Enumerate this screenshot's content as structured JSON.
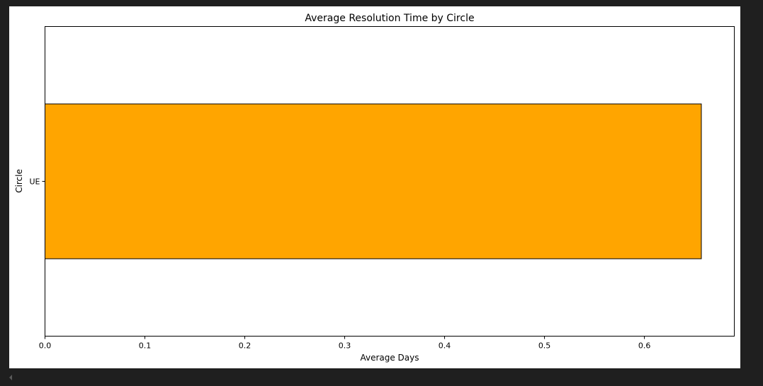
{
  "chart_data": {
    "type": "bar",
    "orientation": "horizontal",
    "title": "Average Resolution Time by Circle",
    "xlabel": "Average Days",
    "ylabel": "Circle",
    "categories": [
      "UE"
    ],
    "values": [
      0.657
    ],
    "xlim": [
      0,
      0.69
    ],
    "xticks": [
      "0.0",
      "0.1",
      "0.2",
      "0.3",
      "0.4",
      "0.5",
      "0.6"
    ],
    "grid": false,
    "bar_color": "#FFA500",
    "bar_edge_color": "#000000"
  },
  "page": {
    "background_color": "#1f1f1f",
    "scroll_icon": "scroll-left-arrow-icon"
  }
}
